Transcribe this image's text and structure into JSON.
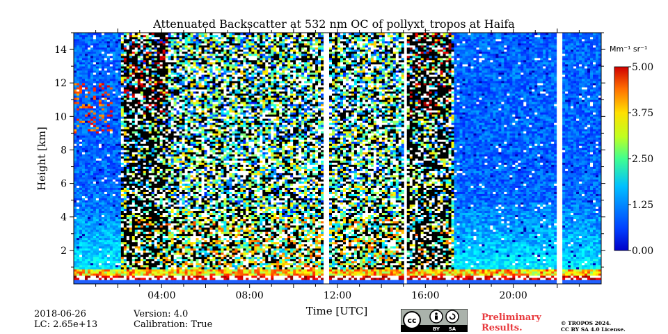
{
  "chart_data": {
    "type": "heatmap",
    "title": "Attenuated Backscatter at 532 nm OC of pollyxt_tropos at Haifa",
    "xlabel": "Time [UTC]",
    "ylabel": "Height [km]",
    "xlim_hours": [
      0,
      24
    ],
    "ylim_km": [
      0,
      15
    ],
    "x_ticks": [
      {
        "hour": 4,
        "label": "04:00"
      },
      {
        "hour": 8,
        "label": "08:00"
      },
      {
        "hour": 12,
        "label": "12:00"
      },
      {
        "hour": 16,
        "label": "16:00"
      },
      {
        "hour": 20,
        "label": "20:00"
      }
    ],
    "y_ticks": [
      {
        "km": 2,
        "label": "2"
      },
      {
        "km": 4,
        "label": "4"
      },
      {
        "km": 6,
        "label": "6"
      },
      {
        "km": 8,
        "label": "8"
      },
      {
        "km": 10,
        "label": "10"
      },
      {
        "km": 12,
        "label": "12"
      },
      {
        "km": 14,
        "label": "14"
      }
    ],
    "colorbar": {
      "unit": "Mm⁻¹ sr⁻¹",
      "range": [
        0,
        5
      ],
      "ticks": [
        {
          "value": 0,
          "label": "0.00"
        },
        {
          "value": 1.25,
          "label": "1.25"
        },
        {
          "value": 2.5,
          "label": "2.50"
        },
        {
          "value": 3.75,
          "label": "3.75"
        },
        {
          "value": 5,
          "label": "5.00"
        }
      ],
      "colormap": "jet"
    },
    "data_gaps_hours": [
      11.5,
      15.05,
      22.1
    ],
    "daytime_hours": [
      2.2,
      17.3
    ],
    "boundary_layer_top_km": 0.9,
    "noise_descriptor": "high solar background noise during daytime; clear low aerosol load aloft at night"
  },
  "meta": {
    "date": "2018-06-26",
    "lc": "LC: 2.65e+13",
    "version": "Version: 4.0",
    "calibration": "Calibration: True"
  },
  "license": {
    "badge_left": "cc",
    "badge_by": "BY",
    "badge_sa": "SA",
    "preliminary_line1": "Preliminary",
    "preliminary_line2": "Results.",
    "copyright_line1": "© TROPOS 2024.",
    "copyright_line2": "CC BY SA 4.0 License."
  },
  "colors": {
    "prelim": "#e8393d",
    "axes": "#000000",
    "background": "#ffffff"
  }
}
